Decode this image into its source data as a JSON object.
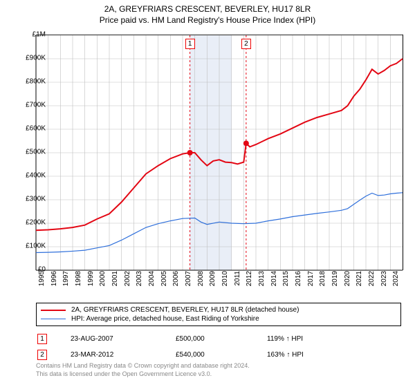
{
  "title_line1": "2A, GREYFRIARS CRESCENT, BEVERLEY, HU17 8LR",
  "title_line2": "Price paid vs. HM Land Registry's House Price Index (HPI)",
  "chart": {
    "type": "line",
    "background_color": "#ffffff",
    "grid_color": "#bfbfbf",
    "text_color": "#000000",
    "y_axis": {
      "min": 0,
      "max": 1000000,
      "tick_step": 100000,
      "ticks": [
        "£0",
        "£100K",
        "£200K",
        "£300K",
        "£400K",
        "£500K",
        "£600K",
        "£700K",
        "£800K",
        "£900K",
        "£1M"
      ]
    },
    "x_axis": {
      "min": 1995,
      "max": 2025,
      "ticks": [
        1995,
        1996,
        1997,
        1998,
        1999,
        2000,
        2001,
        2002,
        2003,
        2004,
        2005,
        2006,
        2007,
        2008,
        2009,
        2010,
        2011,
        2012,
        2013,
        2014,
        2015,
        2016,
        2017,
        2018,
        2019,
        2020,
        2021,
        2022,
        2023,
        2024
      ]
    },
    "shaded_band": {
      "x_from": 2007.6,
      "x_to": 2011.0,
      "fill": "#e9eef7"
    },
    "series": [
      {
        "name": "property",
        "label": "2A, GREYFRIARS CRESCENT, BEVERLEY, HU17 8LR (detached house)",
        "color": "#e30613",
        "line_width": 2,
        "points": [
          [
            1995,
            170000
          ],
          [
            1996,
            172000
          ],
          [
            1997,
            176000
          ],
          [
            1998,
            182000
          ],
          [
            1999,
            192000
          ],
          [
            2000,
            218000
          ],
          [
            2001,
            240000
          ],
          [
            2002,
            290000
          ],
          [
            2003,
            350000
          ],
          [
            2004,
            410000
          ],
          [
            2005,
            445000
          ],
          [
            2006,
            475000
          ],
          [
            2007,
            495000
          ],
          [
            2007.6,
            500000
          ],
          [
            2008,
            500000
          ],
          [
            2008.5,
            470000
          ],
          [
            2009,
            445000
          ],
          [
            2009.5,
            465000
          ],
          [
            2010,
            470000
          ],
          [
            2010.5,
            460000
          ],
          [
            2011,
            458000
          ],
          [
            2011.5,
            452000
          ],
          [
            2012,
            460000
          ],
          [
            2012.2,
            540000
          ],
          [
            2012.5,
            525000
          ],
          [
            2013,
            535000
          ],
          [
            2014,
            560000
          ],
          [
            2015,
            580000
          ],
          [
            2016,
            605000
          ],
          [
            2017,
            630000
          ],
          [
            2018,
            650000
          ],
          [
            2019,
            665000
          ],
          [
            2020,
            680000
          ],
          [
            2020.5,
            700000
          ],
          [
            2021,
            740000
          ],
          [
            2021.5,
            770000
          ],
          [
            2022,
            810000
          ],
          [
            2022.5,
            855000
          ],
          [
            2023,
            835000
          ],
          [
            2023.5,
            850000
          ],
          [
            2024,
            870000
          ],
          [
            2024.5,
            880000
          ],
          [
            2025,
            900000
          ]
        ]
      },
      {
        "name": "hpi",
        "label": "HPI: Average price, detached house, East Riding of Yorkshire",
        "color": "#2e6fdb",
        "line_width": 1.2,
        "points": [
          [
            1995,
            75000
          ],
          [
            1996,
            76000
          ],
          [
            1997,
            78000
          ],
          [
            1998,
            81000
          ],
          [
            1999,
            85000
          ],
          [
            2000,
            95000
          ],
          [
            2001,
            105000
          ],
          [
            2002,
            128000
          ],
          [
            2003,
            155000
          ],
          [
            2004,
            182000
          ],
          [
            2005,
            198000
          ],
          [
            2006,
            210000
          ],
          [
            2007,
            220000
          ],
          [
            2008,
            222000
          ],
          [
            2008.5,
            205000
          ],
          [
            2009,
            195000
          ],
          [
            2010,
            205000
          ],
          [
            2011,
            200000
          ],
          [
            2012,
            198000
          ],
          [
            2013,
            200000
          ],
          [
            2014,
            210000
          ],
          [
            2015,
            218000
          ],
          [
            2016,
            228000
          ],
          [
            2017,
            235000
          ],
          [
            2018,
            242000
          ],
          [
            2019,
            248000
          ],
          [
            2020,
            255000
          ],
          [
            2020.5,
            262000
          ],
          [
            2021,
            280000
          ],
          [
            2021.5,
            298000
          ],
          [
            2022,
            315000
          ],
          [
            2022.5,
            328000
          ],
          [
            2023,
            318000
          ],
          [
            2023.5,
            320000
          ],
          [
            2024,
            325000
          ],
          [
            2024.5,
            328000
          ],
          [
            2025,
            330000
          ]
        ]
      }
    ],
    "event_markers": [
      {
        "n": "1",
        "x": 2007.6,
        "y": 500000,
        "dot_color": "#e30613"
      },
      {
        "n": "2",
        "x": 2012.2,
        "y": 540000,
        "dot_color": "#e30613"
      }
    ],
    "event_line_color": "#e30613",
    "event_line_dash": "3,3"
  },
  "legend": {
    "items": [
      {
        "color": "#e30613",
        "label": "2A, GREYFRIARS CRESCENT, BEVERLEY, HU17 8LR (detached house)",
        "width": 2
      },
      {
        "color": "#2e6fdb",
        "label": "HPI: Average price, detached house, East Riding of Yorkshire",
        "width": 1.2
      }
    ]
  },
  "events_table": [
    {
      "n": "1",
      "date": "23-AUG-2007",
      "price": "£500,000",
      "vs_hpi": "119% ↑ HPI"
    },
    {
      "n": "2",
      "date": "23-MAR-2012",
      "price": "£540,000",
      "vs_hpi": "163% ↑ HPI"
    }
  ],
  "footer_line1": "Contains HM Land Registry data © Crown copyright and database right 2024.",
  "footer_line2": "This data is licensed under the Open Government Licence v3.0."
}
